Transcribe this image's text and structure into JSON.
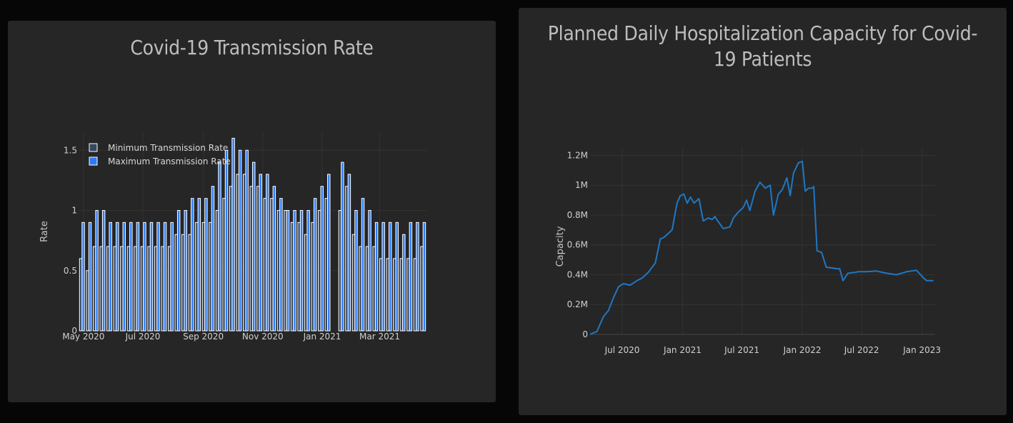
{
  "left_chart": {
    "title": "Covid-19 Transmission Rate",
    "ylabel": "Rate",
    "legend": [
      "Minimum Transmission Rate",
      "Maximum Transmission Rate"
    ],
    "colors": {
      "min": "#36485f",
      "max": "#2b7bf5",
      "outline": "#ffffff"
    },
    "ytick_labels": [
      "0",
      "0.5",
      "1",
      "1.5"
    ],
    "xtick_labels": [
      "May 2020",
      "Jul 2020",
      "Sep 2020",
      "Nov 2020",
      "Jan 2021",
      "Mar 2021"
    ]
  },
  "right_chart": {
    "title": "Planned Daily Hospitalization Capacity for Covid-19 Patients",
    "ylabel": "Capacity",
    "line_color": "#1f77c4",
    "ytick_labels": [
      "0",
      "0.2M",
      "0.4M",
      "0.6M",
      "0.8M",
      "1M",
      "1.2M"
    ],
    "xtick_labels": [
      "Jul 2020",
      "Jan 2021",
      "Jul 2021",
      "Jan 2022",
      "Jul 2022",
      "Jan 2023"
    ]
  },
  "chart_data": [
    {
      "type": "bar",
      "title": "Covid-19 Transmission Rate",
      "xlabel": "",
      "ylabel": "Rate",
      "x_start": "2020-04-26",
      "x_interval_days": 7,
      "ylim": [
        0,
        1.65
      ],
      "legend_position": "top-left",
      "series": [
        {
          "name": "Minimum Transmission Rate",
          "values": [
            0.6,
            0.5,
            0.7,
            0.7,
            0.7,
            0.7,
            0.7,
            0.7,
            0.7,
            0.7,
            0.7,
            0.7,
            0.7,
            0.7,
            0.8,
            0.8,
            0.8,
            0.9,
            0.9,
            0.9,
            1.0,
            1.1,
            1.2,
            1.3,
            1.3,
            1.2,
            1.2,
            1.1,
            1.1,
            1.0,
            1.0,
            0.9,
            0.9,
            0.8,
            0.9,
            1.0,
            1.1,
            null,
            1.0,
            1.2,
            0.8,
            0.7,
            0.7,
            0.7,
            0.6,
            0.6,
            0.6,
            0.6,
            0.6,
            0.6,
            0.7
          ]
        },
        {
          "name": "Maximum Transmission Rate",
          "values": [
            0.9,
            0.9,
            1.0,
            1.0,
            0.9,
            0.9,
            0.9,
            0.9,
            0.9,
            0.9,
            0.9,
            0.9,
            0.9,
            0.9,
            1.0,
            1.0,
            1.1,
            1.1,
            1.1,
            1.2,
            1.4,
            1.5,
            1.6,
            1.5,
            1.5,
            1.4,
            1.3,
            1.3,
            1.2,
            1.1,
            1.0,
            1.0,
            1.0,
            1.0,
            1.1,
            1.2,
            1.3,
            null,
            1.4,
            1.3,
            1.0,
            1.1,
            1.0,
            0.9,
            0.9,
            0.9,
            0.9,
            0.8,
            0.9,
            0.9,
            0.9
          ]
        }
      ]
    },
    {
      "type": "line",
      "title": "Planned Daily Hospitalization Capacity for Covid-19 Patients",
      "xlabel": "",
      "ylabel": "Capacity",
      "xlim": [
        "2020-03-25",
        "2023-02-10"
      ],
      "ylim": [
        0,
        1250000
      ],
      "series": [
        {
          "name": "",
          "x": [
            "2020-03-25",
            "2020-04-15",
            "2020-05-05",
            "2020-05-20",
            "2020-06-05",
            "2020-06-20",
            "2020-07-05",
            "2020-07-25",
            "2020-08-15",
            "2020-09-01",
            "2020-09-20",
            "2020-10-10",
            "2020-10-25",
            "2020-11-05",
            "2020-11-15",
            "2020-11-30",
            "2020-12-15",
            "2020-12-25",
            "2021-01-05",
            "2021-01-15",
            "2021-01-25",
            "2021-02-05",
            "2021-02-20",
            "2021-03-05",
            "2021-03-20",
            "2021-04-01",
            "2021-04-10",
            "2021-04-15",
            "2021-05-05",
            "2021-05-25",
            "2021-06-05",
            "2021-06-20",
            "2021-07-05",
            "2021-07-15",
            "2021-07-25",
            "2021-08-10",
            "2021-08-25",
            "2021-09-10",
            "2021-09-25",
            "2021-10-05",
            "2021-10-20",
            "2021-11-01",
            "2021-11-15",
            "2021-11-25",
            "2021-12-05",
            "2021-12-20",
            "2022-01-01",
            "2022-01-10",
            "2022-01-20",
            "2022-01-30",
            "2022-02-05",
            "2022-02-15",
            "2022-03-01",
            "2022-03-15",
            "2022-04-05",
            "2022-04-15",
            "2022-04-25",
            "2022-05-05",
            "2022-05-20",
            "2022-06-10",
            "2022-06-20",
            "2022-06-30",
            "2022-07-15",
            "2022-08-15",
            "2022-09-15",
            "2022-10-15",
            "2022-11-15",
            "2022-12-15",
            "2023-01-05",
            "2023-01-15",
            "2023-01-25",
            "2023-02-05"
          ],
          "y": [
            0,
            20000,
            120000,
            160000,
            250000,
            320000,
            340000,
            330000,
            360000,
            380000,
            420000,
            480000,
            640000,
            650000,
            670000,
            700000,
            880000,
            930000,
            940000,
            880000,
            920000,
            880000,
            910000,
            760000,
            780000,
            770000,
            790000,
            770000,
            710000,
            720000,
            780000,
            820000,
            850000,
            900000,
            830000,
            960000,
            1020000,
            980000,
            1000000,
            800000,
            940000,
            970000,
            1050000,
            930000,
            1080000,
            1150000,
            1160000,
            960000,
            980000,
            980000,
            990000,
            560000,
            550000,
            450000,
            445000,
            440000,
            440000,
            360000,
            410000,
            415000,
            420000,
            420000,
            420000,
            425000,
            410000,
            400000,
            420000,
            430000,
            380000,
            360000,
            360000,
            360000
          ]
        }
      ]
    }
  ]
}
